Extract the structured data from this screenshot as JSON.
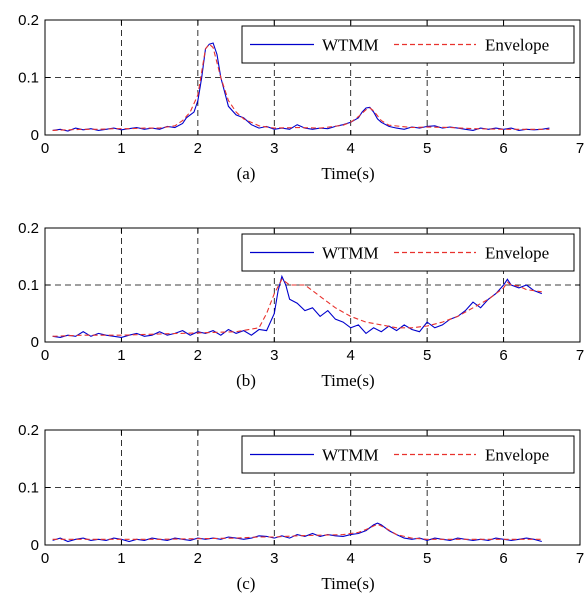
{
  "chart_data": [
    {
      "type": "line",
      "panel_label": "(a)",
      "xlabel": "Time(s)",
      "xlim": [
        0,
        7
      ],
      "ylim": [
        0,
        0.2
      ],
      "xticks": [
        "0",
        "1",
        "2",
        "3",
        "4",
        "5",
        "6",
        "7"
      ],
      "yticks": [
        "0",
        "0.1",
        "0.2"
      ],
      "grid": true,
      "legend_position": "top-right",
      "series": [
        {
          "name": "WTMM",
          "color": "#0000cc",
          "style": "solid",
          "x": [
            0.1,
            0.2,
            0.3,
            0.4,
            0.5,
            0.6,
            0.7,
            0.8,
            0.9,
            1.0,
            1.1,
            1.2,
            1.3,
            1.4,
            1.5,
            1.6,
            1.7,
            1.8,
            1.85,
            1.9,
            1.95,
            2.0,
            2.05,
            2.1,
            2.15,
            2.2,
            2.25,
            2.3,
            2.35,
            2.4,
            2.5,
            2.6,
            2.7,
            2.8,
            2.9,
            3.0,
            3.1,
            3.2,
            3.3,
            3.4,
            3.5,
            3.6,
            3.7,
            3.8,
            3.9,
            4.0,
            4.1,
            4.15,
            4.2,
            4.25,
            4.3,
            4.35,
            4.4,
            4.5,
            4.6,
            4.7,
            4.8,
            4.9,
            5.0,
            5.1,
            5.2,
            5.3,
            5.4,
            5.5,
            5.6,
            5.7,
            5.8,
            5.9,
            6.0,
            6.1,
            6.2,
            6.3,
            6.4,
            6.5,
            6.6
          ],
          "y": [
            0.008,
            0.01,
            0.007,
            0.012,
            0.009,
            0.011,
            0.008,
            0.01,
            0.012,
            0.009,
            0.011,
            0.013,
            0.01,
            0.012,
            0.01,
            0.015,
            0.013,
            0.02,
            0.03,
            0.035,
            0.04,
            0.06,
            0.1,
            0.15,
            0.158,
            0.16,
            0.14,
            0.1,
            0.075,
            0.05,
            0.035,
            0.03,
            0.018,
            0.012,
            0.015,
            0.01,
            0.012,
            0.01,
            0.018,
            0.012,
            0.01,
            0.012,
            0.011,
            0.015,
            0.018,
            0.022,
            0.03,
            0.04,
            0.047,
            0.048,
            0.04,
            0.028,
            0.022,
            0.015,
            0.012,
            0.01,
            0.014,
            0.012,
            0.015,
            0.016,
            0.012,
            0.014,
            0.012,
            0.01,
            0.008,
            0.012,
            0.01,
            0.012,
            0.01,
            0.012,
            0.008,
            0.01,
            0.009,
            0.01,
            0.012
          ]
        },
        {
          "name": "Envelope",
          "color": "#e8322d",
          "style": "dashed",
          "x": [
            0.1,
            0.3,
            0.5,
            0.7,
            0.9,
            1.1,
            1.3,
            1.5,
            1.7,
            1.8,
            1.9,
            2.0,
            2.05,
            2.1,
            2.15,
            2.2,
            2.3,
            2.4,
            2.5,
            2.6,
            2.8,
            3.0,
            3.3,
            3.6,
            3.9,
            4.0,
            4.1,
            4.2,
            4.25,
            4.3,
            4.4,
            4.5,
            4.8,
            5.0,
            5.3,
            5.6,
            6.0,
            6.3,
            6.6
          ],
          "y": [
            0.008,
            0.009,
            0.01,
            0.01,
            0.011,
            0.011,
            0.012,
            0.012,
            0.016,
            0.025,
            0.04,
            0.07,
            0.11,
            0.15,
            0.158,
            0.152,
            0.1,
            0.06,
            0.04,
            0.028,
            0.016,
            0.012,
            0.013,
            0.012,
            0.017,
            0.022,
            0.032,
            0.044,
            0.047,
            0.042,
            0.025,
            0.017,
            0.013,
            0.014,
            0.013,
            0.011,
            0.01,
            0.01,
            0.01
          ]
        }
      ]
    },
    {
      "type": "line",
      "panel_label": "(b)",
      "xlabel": "Time(s)",
      "xlim": [
        0,
        7
      ],
      "ylim": [
        0,
        0.2
      ],
      "xticks": [
        "0",
        "1",
        "2",
        "3",
        "4",
        "5",
        "6",
        "7"
      ],
      "yticks": [
        "0",
        "0.1",
        "0.2"
      ],
      "grid": true,
      "legend_position": "top-right",
      "series": [
        {
          "name": "WTMM",
          "color": "#0000cc",
          "style": "solid",
          "x": [
            0.1,
            0.2,
            0.3,
            0.4,
            0.5,
            0.6,
            0.7,
            0.8,
            0.9,
            1.0,
            1.1,
            1.2,
            1.3,
            1.4,
            1.5,
            1.6,
            1.7,
            1.8,
            1.9,
            2.0,
            2.1,
            2.2,
            2.3,
            2.4,
            2.5,
            2.6,
            2.7,
            2.8,
            2.9,
            3.0,
            3.05,
            3.1,
            3.15,
            3.2,
            3.3,
            3.4,
            3.5,
            3.6,
            3.7,
            3.8,
            3.9,
            4.0,
            4.1,
            4.2,
            4.3,
            4.4,
            4.5,
            4.6,
            4.7,
            4.8,
            4.9,
            5.0,
            5.1,
            5.2,
            5.3,
            5.4,
            5.5,
            5.6,
            5.7,
            5.8,
            5.9,
            6.0,
            6.05,
            6.1,
            6.2,
            6.3,
            6.4,
            6.5
          ],
          "y": [
            0.01,
            0.008,
            0.012,
            0.01,
            0.018,
            0.01,
            0.015,
            0.012,
            0.01,
            0.008,
            0.012,
            0.015,
            0.01,
            0.012,
            0.018,
            0.012,
            0.015,
            0.02,
            0.012,
            0.018,
            0.015,
            0.02,
            0.012,
            0.022,
            0.015,
            0.02,
            0.012,
            0.022,
            0.02,
            0.05,
            0.09,
            0.115,
            0.1,
            0.075,
            0.068,
            0.055,
            0.06,
            0.045,
            0.055,
            0.04,
            0.035,
            0.025,
            0.03,
            0.015,
            0.025,
            0.018,
            0.028,
            0.02,
            0.03,
            0.022,
            0.018,
            0.035,
            0.025,
            0.03,
            0.04,
            0.045,
            0.055,
            0.07,
            0.06,
            0.075,
            0.085,
            0.1,
            0.11,
            0.1,
            0.095,
            0.1,
            0.09,
            0.085
          ]
        },
        {
          "name": "Envelope",
          "color": "#e8322d",
          "style": "dashed",
          "x": [
            0.1,
            0.5,
            1.0,
            1.5,
            2.0,
            2.5,
            2.8,
            2.9,
            3.0,
            3.1,
            3.2,
            3.4,
            3.6,
            3.8,
            4.0,
            4.2,
            4.4,
            4.6,
            4.8,
            5.0,
            5.2,
            5.4,
            5.6,
            5.8,
            6.0,
            6.05,
            6.1,
            6.2,
            6.3,
            6.5
          ],
          "y": [
            0.01,
            0.012,
            0.012,
            0.014,
            0.016,
            0.018,
            0.025,
            0.05,
            0.085,
            0.11,
            0.1,
            0.1,
            0.08,
            0.06,
            0.045,
            0.035,
            0.03,
            0.025,
            0.025,
            0.028,
            0.035,
            0.045,
            0.06,
            0.075,
            0.095,
            0.105,
            0.1,
            0.098,
            0.092,
            0.088
          ]
        }
      ]
    },
    {
      "type": "line",
      "panel_label": "(c)",
      "xlabel": "Time(s)",
      "xlim": [
        0,
        7
      ],
      "ylim": [
        0,
        0.2
      ],
      "xticks": [
        "0",
        "1",
        "2",
        "3",
        "4",
        "5",
        "6",
        "7"
      ],
      "yticks": [
        "0",
        "0.1",
        "0.2"
      ],
      "grid": true,
      "legend_position": "top-right",
      "series": [
        {
          "name": "WTMM",
          "color": "#0000cc",
          "style": "solid",
          "x": [
            0.1,
            0.2,
            0.3,
            0.4,
            0.5,
            0.6,
            0.7,
            0.8,
            0.9,
            1.0,
            1.1,
            1.2,
            1.3,
            1.4,
            1.5,
            1.6,
            1.7,
            1.8,
            1.9,
            2.0,
            2.1,
            2.2,
            2.3,
            2.4,
            2.5,
            2.6,
            2.7,
            2.8,
            2.9,
            3.0,
            3.1,
            3.2,
            3.3,
            3.4,
            3.5,
            3.6,
            3.7,
            3.8,
            3.9,
            4.0,
            4.1,
            4.2,
            4.3,
            4.35,
            4.4,
            4.5,
            4.6,
            4.7,
            4.8,
            4.9,
            5.0,
            5.1,
            5.2,
            5.3,
            5.4,
            5.5,
            5.6,
            5.7,
            5.8,
            5.9,
            6.0,
            6.1,
            6.2,
            6.3,
            6.4,
            6.5
          ],
          "y": [
            0.008,
            0.012,
            0.006,
            0.01,
            0.012,
            0.008,
            0.01,
            0.008,
            0.012,
            0.01,
            0.006,
            0.01,
            0.008,
            0.012,
            0.01,
            0.008,
            0.012,
            0.01,
            0.008,
            0.012,
            0.01,
            0.012,
            0.01,
            0.014,
            0.012,
            0.01,
            0.012,
            0.016,
            0.015,
            0.012,
            0.016,
            0.012,
            0.018,
            0.015,
            0.02,
            0.015,
            0.018,
            0.016,
            0.015,
            0.018,
            0.02,
            0.025,
            0.035,
            0.038,
            0.035,
            0.025,
            0.018,
            0.012,
            0.01,
            0.012,
            0.008,
            0.012,
            0.01,
            0.008,
            0.012,
            0.01,
            0.008,
            0.01,
            0.008,
            0.012,
            0.01,
            0.008,
            0.01,
            0.012,
            0.01,
            0.006
          ]
        },
        {
          "name": "Envelope",
          "color": "#e8322d",
          "style": "dashed",
          "x": [
            0.1,
            0.5,
            1.0,
            1.5,
            2.0,
            2.5,
            2.8,
            3.0,
            3.3,
            3.6,
            3.9,
            4.1,
            4.2,
            4.3,
            4.35,
            4.45,
            4.6,
            4.8,
            5.0,
            5.5,
            6.0,
            6.5
          ],
          "y": [
            0.01,
            0.01,
            0.01,
            0.01,
            0.011,
            0.012,
            0.014,
            0.014,
            0.016,
            0.017,
            0.018,
            0.022,
            0.027,
            0.033,
            0.036,
            0.03,
            0.018,
            0.012,
            0.01,
            0.01,
            0.01,
            0.01
          ]
        }
      ]
    }
  ]
}
